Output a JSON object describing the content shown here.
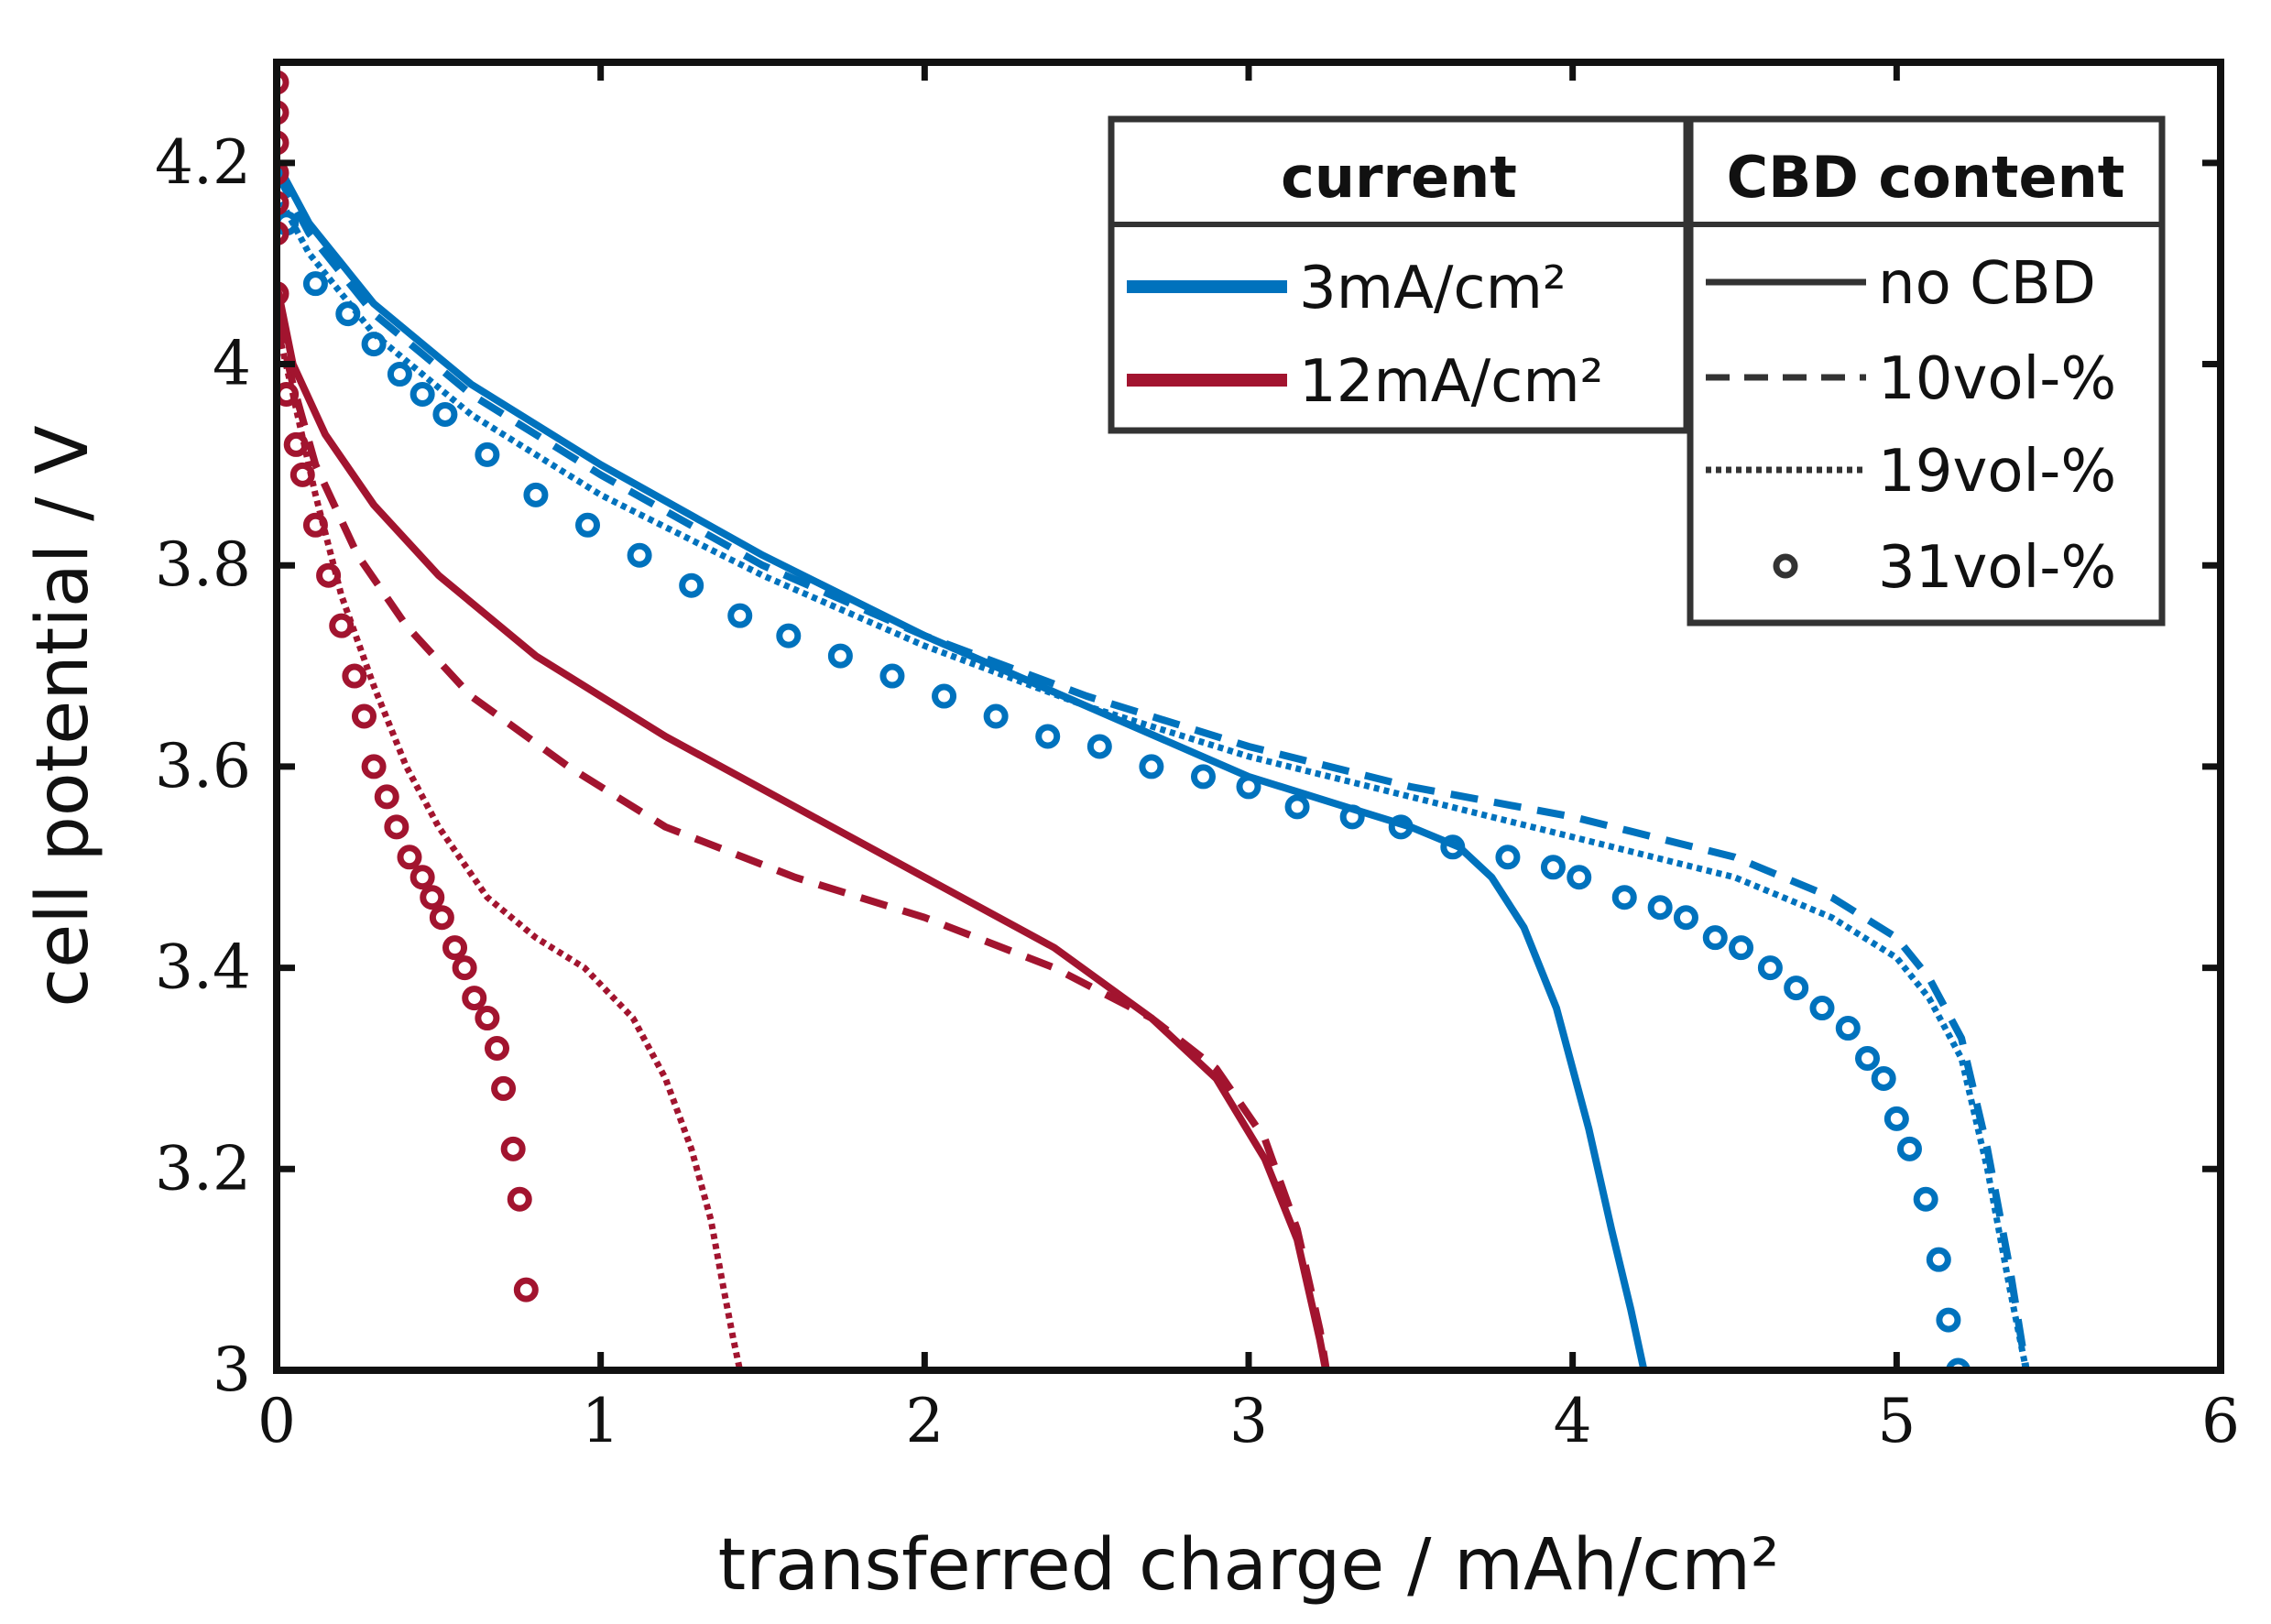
{
  "colors": {
    "blue": "#0072BD",
    "red": "#A2142F",
    "ink": "#111111",
    "legend_gray": "#333333"
  },
  "chart_data": {
    "type": "line",
    "xlabel": "transferred charge / mAh/cm²",
    "ylabel": "cell potential / V",
    "xlim": [
      0,
      6
    ],
    "ylim": [
      3,
      4.3
    ],
    "xticks": [
      "0",
      "1",
      "2",
      "3",
      "4",
      "5",
      "6"
    ],
    "yticks": [
      "3",
      "3.2",
      "3.4",
      "3.6",
      "3.8",
      "4",
      "4.2"
    ],
    "grid": false,
    "legend": {
      "placement": "top-right",
      "current_title": "current",
      "cbd_title": "CBD content",
      "currents": [
        {
          "label": "3mA/cm²",
          "color": "#0072BD"
        },
        {
          "label": "12mA/cm²",
          "color": "#A2142F"
        }
      ],
      "contents": [
        {
          "label": "no CBD",
          "style": "solid"
        },
        {
          "label": "10vol-%",
          "style": "dashed"
        },
        {
          "label": "19vol-%",
          "style": "dotted"
        },
        {
          "label": "31vol-%",
          "style": "markers"
        }
      ]
    },
    "series": [
      {
        "name": "3mA/cm² no CBD",
        "color": "#0072BD",
        "style": "solid",
        "x": [
          0,
          0.1,
          0.3,
          0.6,
          1.0,
          1.5,
          2.0,
          2.5,
          3.0,
          3.3,
          3.5,
          3.65,
          3.75,
          3.85,
          3.95,
          4.05,
          4.12,
          4.18,
          4.22,
          4.24
        ],
        "y": [
          4.2,
          4.14,
          4.06,
          3.98,
          3.9,
          3.81,
          3.73,
          3.66,
          3.59,
          3.56,
          3.54,
          3.52,
          3.49,
          3.44,
          3.36,
          3.24,
          3.14,
          3.06,
          3.0,
          2.96
        ]
      },
      {
        "name": "3mA/cm² 10vol-%",
        "color": "#0072BD",
        "style": "dashed",
        "x": [
          0,
          0.1,
          0.3,
          0.6,
          1.0,
          1.5,
          2.0,
          2.5,
          3.0,
          3.5,
          4.0,
          4.5,
          4.8,
          5.0,
          5.1,
          5.2,
          5.28,
          5.35,
          5.4,
          5.43
        ],
        "y": [
          4.19,
          4.13,
          4.05,
          3.97,
          3.89,
          3.8,
          3.73,
          3.67,
          3.62,
          3.58,
          3.55,
          3.51,
          3.47,
          3.43,
          3.39,
          3.33,
          3.22,
          3.1,
          3.0,
          2.96
        ]
      },
      {
        "name": "3mA/cm² 19vol-%",
        "color": "#0072BD",
        "style": "dotted",
        "x": [
          0,
          0.1,
          0.3,
          0.6,
          1.0,
          1.5,
          2.0,
          2.5,
          3.0,
          3.5,
          4.0,
          4.5,
          4.8,
          5.0,
          5.1,
          5.2,
          5.28,
          5.35,
          5.4,
          5.43
        ],
        "y": [
          4.17,
          4.11,
          4.03,
          3.95,
          3.87,
          3.79,
          3.72,
          3.66,
          3.61,
          3.57,
          3.53,
          3.49,
          3.45,
          3.41,
          3.37,
          3.31,
          3.2,
          3.08,
          3.0,
          2.96
        ]
      },
      {
        "name": "3mA/cm² 31vol-%",
        "color": "#0072BD",
        "style": "markers",
        "x": [
          0.03,
          0.12,
          0.22,
          0.3,
          0.38,
          0.45,
          0.52,
          0.65,
          0.8,
          0.96,
          1.12,
          1.28,
          1.43,
          1.58,
          1.74,
          1.9,
          2.06,
          2.22,
          2.38,
          2.54,
          2.7,
          2.86,
          3.0,
          3.15,
          3.32,
          3.47,
          3.63,
          3.8,
          3.94,
          4.02,
          4.16,
          4.27,
          4.35,
          4.44,
          4.52,
          4.61,
          4.69,
          4.77,
          4.85,
          4.91,
          4.96,
          5.0,
          5.04,
          5.09,
          5.13,
          5.16,
          5.19
        ],
        "y": [
          4.14,
          4.08,
          4.05,
          4.02,
          3.99,
          3.97,
          3.95,
          3.91,
          3.87,
          3.84,
          3.81,
          3.78,
          3.75,
          3.73,
          3.71,
          3.69,
          3.67,
          3.65,
          3.63,
          3.62,
          3.6,
          3.59,
          3.58,
          3.56,
          3.55,
          3.54,
          3.52,
          3.51,
          3.5,
          3.49,
          3.47,
          3.46,
          3.45,
          3.43,
          3.42,
          3.4,
          3.38,
          3.36,
          3.34,
          3.31,
          3.29,
          3.25,
          3.22,
          3.17,
          3.11,
          3.05,
          3.0
        ]
      },
      {
        "name": "12mA/cm² no CBD",
        "color": "#A2142F",
        "style": "solid",
        "x": [
          0,
          0.05,
          0.15,
          0.3,
          0.5,
          0.8,
          1.2,
          1.6,
          2.0,
          2.4,
          2.7,
          2.9,
          3.05,
          3.15,
          3.22,
          3.25
        ],
        "y": [
          4.08,
          4.0,
          3.93,
          3.86,
          3.79,
          3.71,
          3.63,
          3.56,
          3.49,
          3.42,
          3.35,
          3.29,
          3.21,
          3.13,
          3.03,
          2.98
        ]
      },
      {
        "name": "12mA/cm² 10vol-%",
        "color": "#A2142F",
        "style": "dashed",
        "x": [
          0,
          0.05,
          0.12,
          0.25,
          0.4,
          0.6,
          0.9,
          1.2,
          1.6,
          2.0,
          2.4,
          2.7,
          2.9,
          3.05,
          3.15,
          3.22,
          3.25
        ],
        "y": [
          4.05,
          3.98,
          3.9,
          3.81,
          3.74,
          3.67,
          3.6,
          3.54,
          3.49,
          3.45,
          3.4,
          3.35,
          3.3,
          3.23,
          3.14,
          3.04,
          2.98
        ]
      },
      {
        "name": "12mA/cm² 19vol-%",
        "color": "#A2142F",
        "style": "dotted",
        "x": [
          0,
          0.05,
          0.12,
          0.2,
          0.3,
          0.4,
          0.5,
          0.65,
          0.8,
          0.95,
          1.1,
          1.2,
          1.28,
          1.34,
          1.38,
          1.41,
          1.43,
          1.44
        ],
        "y": [
          4.04,
          3.97,
          3.87,
          3.77,
          3.68,
          3.6,
          3.54,
          3.47,
          3.43,
          3.4,
          3.35,
          3.29,
          3.22,
          3.15,
          3.08,
          3.03,
          3.0,
          2.97
        ]
      },
      {
        "name": "12mA/cm² 31vol-%",
        "color": "#A2142F",
        "style": "markers",
        "x": [
          0.0,
          0.0,
          0.0,
          0.0,
          0.0,
          0.0,
          0.0,
          0.0,
          0.03,
          0.06,
          0.08,
          0.12,
          0.16,
          0.2,
          0.24,
          0.27,
          0.3,
          0.34,
          0.37,
          0.41,
          0.45,
          0.48,
          0.51,
          0.55,
          0.58,
          0.61,
          0.65,
          0.68,
          0.7,
          0.73,
          0.75,
          0.77
        ],
        "y": [
          4.28,
          4.25,
          4.22,
          4.19,
          4.16,
          4.13,
          4.07,
          4.03,
          3.97,
          3.92,
          3.89,
          3.84,
          3.79,
          3.74,
          3.69,
          3.65,
          3.6,
          3.57,
          3.54,
          3.51,
          3.49,
          3.47,
          3.45,
          3.42,
          3.4,
          3.37,
          3.35,
          3.32,
          3.28,
          3.22,
          3.17,
          3.08
        ]
      }
    ]
  }
}
